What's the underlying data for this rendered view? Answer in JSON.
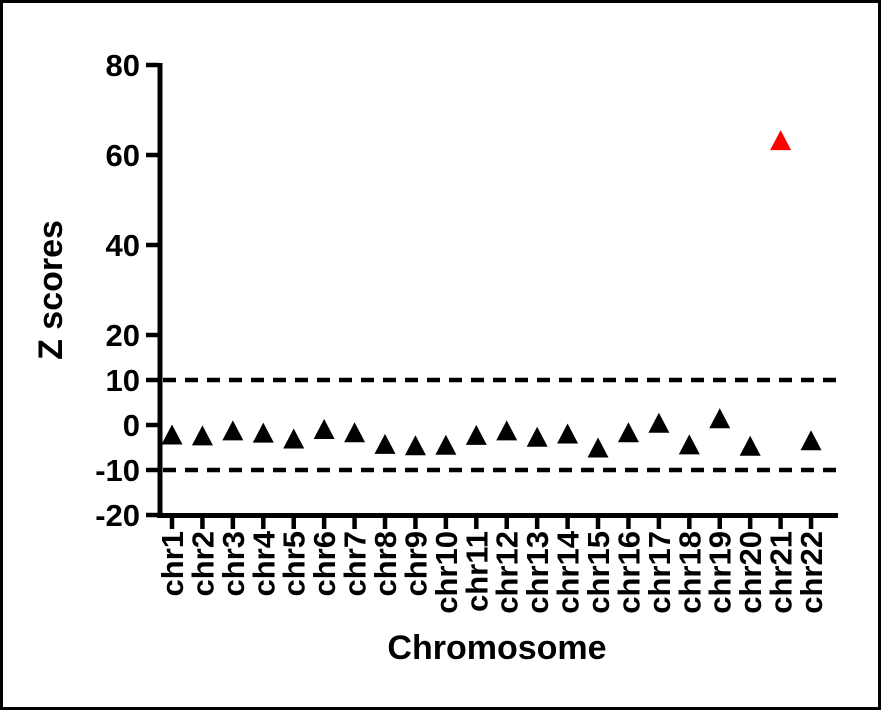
{
  "figure": {
    "background_color": "#ffffff",
    "frame_border_color": "#000000"
  },
  "chart_data": {
    "type": "scatter",
    "marker_shape": "triangle",
    "title": "",
    "xlabel": "Chromosome",
    "ylabel": "Z scores",
    "categories": [
      "chr1",
      "chr2",
      "chr3",
      "chr4",
      "chr5",
      "chr6",
      "chr7",
      "chr8",
      "chr9",
      "chr10",
      "chr11",
      "chr12",
      "chr13",
      "chr14",
      "chr15",
      "chr16",
      "chr17",
      "chr18",
      "chr19",
      "chr20",
      "chr21",
      "chr22"
    ],
    "series": [
      {
        "name": "Z scores",
        "values": [
          -2.1,
          -2.3,
          -1.2,
          -1.7,
          -3.0,
          -0.9,
          -1.6,
          -4.2,
          -4.5,
          -4.4,
          -2.2,
          -1.2,
          -2.6,
          -1.9,
          -5.0,
          -1.6,
          0.5,
          -4.3,
          1.5,
          -4.6,
          63.3,
          -3.4
        ],
        "marker_colors": [
          "#000000",
          "#000000",
          "#000000",
          "#000000",
          "#000000",
          "#000000",
          "#000000",
          "#000000",
          "#000000",
          "#000000",
          "#000000",
          "#000000",
          "#000000",
          "#000000",
          "#000000",
          "#000000",
          "#000000",
          "#000000",
          "#000000",
          "#000000",
          "#FF0000",
          "#000000"
        ]
      }
    ],
    "outlier": {
      "category": "chr21",
      "value": 63.3,
      "color": "#FF0000"
    },
    "default_marker_color": "#000000",
    "axis_color": "#000000",
    "y_ticks": [
      -20,
      -10,
      0,
      10,
      20,
      40,
      60,
      80
    ],
    "ylim": [
      -20,
      80
    ],
    "reference_lines": [
      {
        "y": 10,
        "style": "dashed",
        "color": "#000000"
      },
      {
        "y": -10,
        "style": "dashed",
        "color": "#000000"
      }
    ],
    "grid": false,
    "legend_visible": false
  }
}
